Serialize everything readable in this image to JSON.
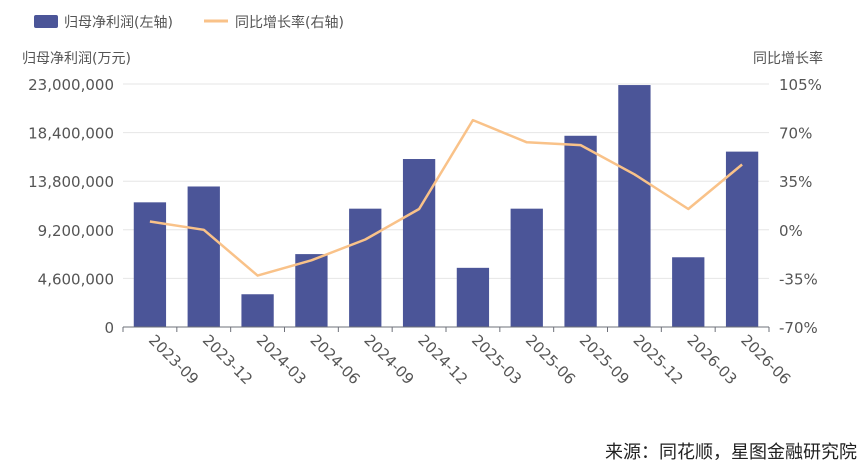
{
  "chart_data": {
    "type": "bar",
    "categories": [
      "2023-09",
      "2023-12",
      "2024-03",
      "2024-06",
      "2024-09",
      "2024-12",
      "2025-03",
      "2025-06",
      "2025-09",
      "2025-12",
      "2026-03",
      "2026-06"
    ],
    "series": [
      {
        "name": "归母净利润(左轴)",
        "type": "bar",
        "axis": "left",
        "color": "#4B5598",
        "values": [
          11800000,
          13300000,
          3100000,
          6900000,
          11200000,
          15900000,
          5600000,
          11200000,
          18100000,
          22900000,
          6600000,
          16600000
        ]
      },
      {
        "name": "同比增长率(右轴)",
        "type": "line",
        "axis": "right",
        "color": "#F9C289",
        "values": [
          6,
          0,
          -33,
          -22,
          -7,
          15,
          79,
          63,
          61,
          40,
          15,
          47
        ]
      }
    ],
    "ylabel_left": "归母净利润(万元)",
    "ylabel_right": "同比增长率",
    "ylim_left": [
      0,
      23000000
    ],
    "ylim_right": [
      -70,
      105
    ],
    "yticks_left": [
      "0",
      "4,600,000",
      "9,200,000",
      "13,800,000",
      "18,400,000",
      "23,000,000"
    ],
    "yticks_right": [
      "-70%",
      "-35%",
      "0%",
      "35%",
      "70%",
      "105%"
    ],
    "grid": true,
    "legend_position": "top-left"
  },
  "source": "来源：同花顺，星图金融研究院"
}
